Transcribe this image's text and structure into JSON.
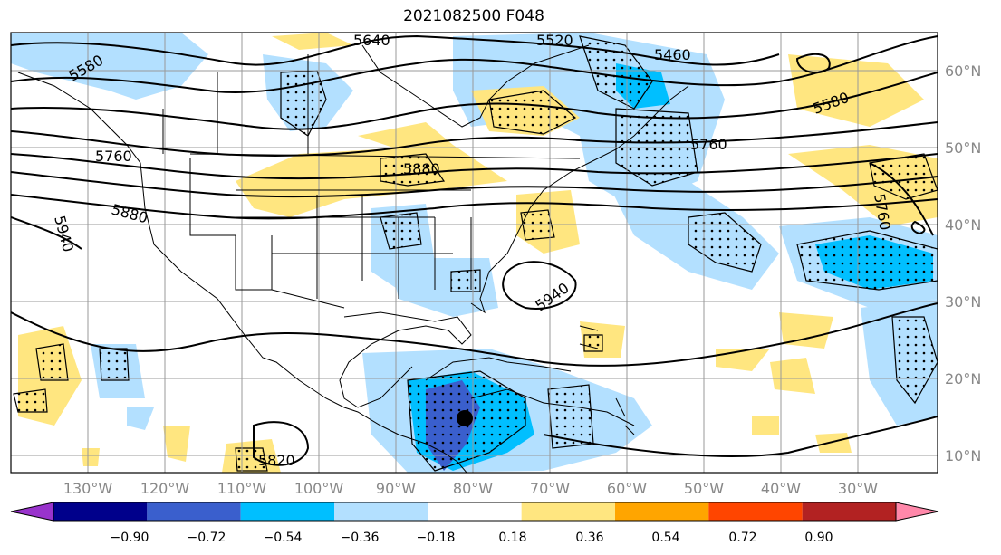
{
  "map": {
    "title": "2021082500 F048",
    "lon_labels": [
      "130°W",
      "120°W",
      "110°W",
      "100°W",
      "90°W",
      "80°W",
      "70°W",
      "60°W",
      "50°W",
      "40°W",
      "30°W"
    ],
    "lat_labels": [
      "60°N",
      "50°N",
      "40°N",
      "30°N",
      "20°N",
      "10°N"
    ],
    "contour_labels": [
      "5640",
      "5460",
      "5580",
      "5580",
      "5760",
      "5760",
      "5880",
      "5940",
      "5940",
      "5760",
      "5820",
      "5880",
      "5520"
    ],
    "colorbar": {
      "labels": [
        "−0.90",
        "−0.72",
        "−0.54",
        "−0.36",
        "−0.18",
        "0.18",
        "0.36",
        "0.54",
        "0.72",
        "0.90"
      ],
      "colors": [
        "#9933cc",
        "#00008b",
        "#3a5fcd",
        "#00bfff",
        "#b3e0ff",
        "#ffffff",
        "#ffe680",
        "#ffa500",
        "#ff4500",
        "#b22222",
        "#ff88aa"
      ]
    },
    "shading_colors": {
      "light_blue": "#b3e0ff",
      "blue": "#00bfff",
      "dark_blue": "#3a5fcd",
      "light_yellow": "#ffe680"
    }
  }
}
